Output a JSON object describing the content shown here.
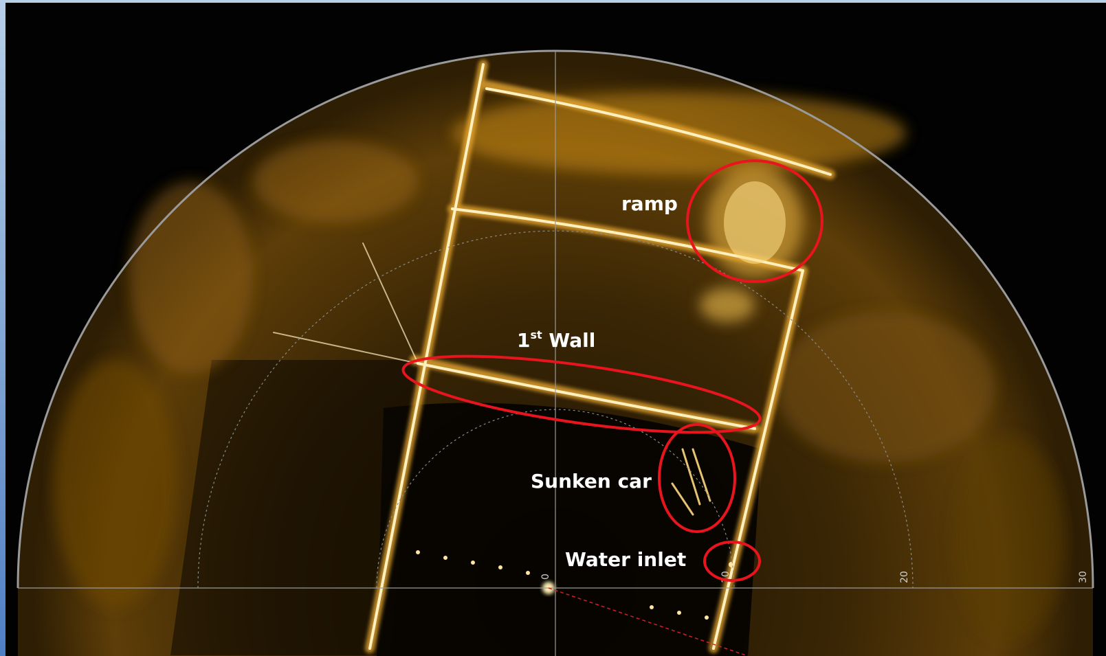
{
  "image": {
    "description_free": true,
    "colors": {
      "background": "#020202",
      "echo_bright": "#fff2c0",
      "echo_mid": "#e0a020",
      "echo_dim": "#6a4608",
      "grid": "#9a9a9a",
      "annotation": "#e8141e",
      "heading_line": "#d42020"
    }
  },
  "range_ticks": [
    "0",
    "10",
    "20",
    "30"
  ],
  "annotations": {
    "ramp": "ramp",
    "wall_prefix": "1",
    "wall_sup": "st",
    "wall_suffix": " Wall",
    "sunken_car": "Sunken car",
    "water_inlet": "Water inlet"
  }
}
